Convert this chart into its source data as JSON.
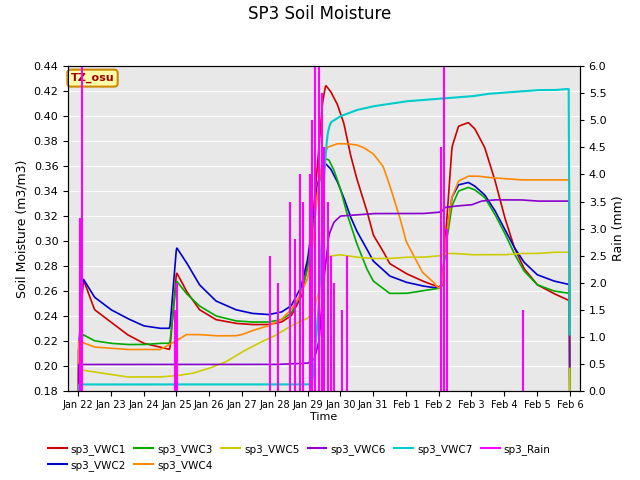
{
  "title": "SP3 Soil Moisture",
  "ylabel_left": "Soil Moisture (m3/m3)",
  "ylabel_right": "Rain (mm)",
  "xlabel": "Time",
  "ylim_left": [
    0.18,
    0.44
  ],
  "ylim_right": [
    0.0,
    6.0
  ],
  "yticks_left": [
    0.18,
    0.2,
    0.22,
    0.24,
    0.26,
    0.28,
    0.3,
    0.32,
    0.34,
    0.36,
    0.38,
    0.4,
    0.42,
    0.44
  ],
  "yticks_right": [
    0.0,
    0.5,
    1.0,
    1.5,
    2.0,
    2.5,
    3.0,
    3.5,
    4.0,
    4.5,
    5.0,
    5.5,
    6.0
  ],
  "bg_color": "#e8e8e8",
  "plot_bg": "#e8e8e8",
  "annotation_text": "TZ_osu",
  "annotation_bg": "#ffffaa",
  "annotation_border": "#cc8800",
  "series_colors": {
    "sp3_VWC1": "#cc0000",
    "sp3_VWC2": "#0000cc",
    "sp3_VWC3": "#00aa00",
    "sp3_VWC4": "#ff8800",
    "sp3_VWC5": "#cccc00",
    "sp3_VWC6": "#8800cc",
    "sp3_VWC7": "#00cccc",
    "sp3_Rain": "#ff00ff"
  },
  "day_labels": [
    "Jan 22",
    "Jan 23",
    "Jan 24",
    "Jan 25",
    "Jan 26",
    "Jan 27",
    "Jan 28",
    "Jan 29",
    "Jan 30",
    "Jan 31",
    "Feb 1",
    "Feb 2",
    "Feb 3",
    "Feb 4",
    "Feb 5",
    "Feb 6"
  ],
  "legend_labels": [
    "sp3_VWC1",
    "sp3_VWC2",
    "sp3_VWC3",
    "sp3_VWC4",
    "sp3_VWC5",
    "sp3_VWC6",
    "sp3_VWC7",
    "sp3_Rain"
  ]
}
